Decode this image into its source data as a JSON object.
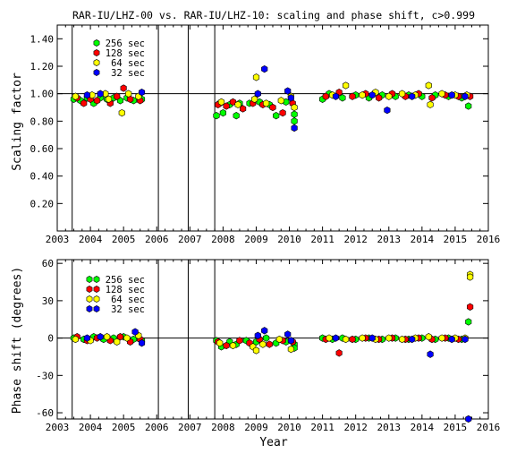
{
  "chart_data": [
    {
      "type": "scatter",
      "title": "RAR-IU/LHZ-00 vs. RAR-IU/LHZ-10: scaling and phase shift, c>0.999",
      "xlabel": "",
      "ylabel": "Scaling factor",
      "xlim": [
        2003,
        2016
      ],
      "ylim": [
        0.0,
        1.5
      ],
      "x_ticks": [
        2003,
        2004,
        2005,
        2006,
        2007,
        2008,
        2009,
        2010,
        2011,
        2012,
        2013,
        2014,
        2015,
        2016
      ],
      "y_ticks": [
        0.2,
        0.4,
        0.6,
        0.8,
        1.0,
        1.2,
        1.4
      ],
      "y_tick_labels": [
        "0.20",
        "0.40",
        "0.60",
        "0.80",
        "1.00",
        "1.20",
        "1.40"
      ],
      "reference_line": 1.0,
      "vertical_lines": [
        2003.45,
        2006.05,
        2006.95,
        2007.75
      ],
      "legend_placement": "top-left",
      "series": [
        {
          "name": "256 sec",
          "color": "#00ff00",
          "points": [
            [
              2003.5,
              0.96
            ],
            [
              2003.7,
              0.95
            ],
            [
              2003.9,
              0.97
            ],
            [
              2004.1,
              0.93
            ],
            [
              2004.3,
              0.97
            ],
            [
              2004.5,
              0.96
            ],
            [
              2004.7,
              0.97
            ],
            [
              2004.9,
              0.95
            ],
            [
              2005.1,
              0.97
            ],
            [
              2005.3,
              0.95
            ],
            [
              2005.55,
              0.96
            ],
            [
              2007.8,
              0.84
            ],
            [
              2007.9,
              0.93
            ],
            [
              2008.0,
              0.86
            ],
            [
              2008.2,
              0.92
            ],
            [
              2008.4,
              0.84
            ],
            [
              2008.5,
              0.93
            ],
            [
              2008.8,
              0.93
            ],
            [
              2009.1,
              0.94
            ],
            [
              2009.4,
              0.92
            ],
            [
              2009.6,
              0.84
            ],
            [
              2009.9,
              0.94
            ],
            [
              2010.15,
              0.85
            ],
            [
              2010.15,
              0.8
            ],
            [
              2011.0,
              0.96
            ],
            [
              2011.2,
              1.0
            ],
            [
              2011.6,
              0.97
            ],
            [
              2012.0,
              0.99
            ],
            [
              2012.4,
              0.97
            ],
            [
              2012.8,
              0.99
            ],
            [
              2013.2,
              0.98
            ],
            [
              2013.6,
              0.99
            ],
            [
              2014.0,
              0.98
            ],
            [
              2014.4,
              0.99
            ],
            [
              2014.8,
              0.98
            ],
            [
              2015.2,
              0.97
            ],
            [
              2015.4,
              0.91
            ]
          ]
        },
        {
          "name": "128 sec",
          "color": "#ff0000",
          "points": [
            [
              2003.6,
              0.97
            ],
            [
              2003.8,
              0.93
            ],
            [
              2004.0,
              0.96
            ],
            [
              2004.2,
              0.95
            ],
            [
              2004.6,
              0.93
            ],
            [
              2004.8,
              0.98
            ],
            [
              2005.0,
              1.04
            ],
            [
              2005.2,
              0.96
            ],
            [
              2005.5,
              0.95
            ],
            [
              2007.85,
              0.92
            ],
            [
              2008.1,
              0.91
            ],
            [
              2008.3,
              0.94
            ],
            [
              2008.6,
              0.89
            ],
            [
              2008.9,
              0.93
            ],
            [
              2009.2,
              0.92
            ],
            [
              2009.5,
              0.9
            ],
            [
              2009.8,
              0.86
            ],
            [
              2010.1,
              0.93
            ],
            [
              2011.1,
              0.98
            ],
            [
              2011.5,
              1.01
            ],
            [
              2011.9,
              0.98
            ],
            [
              2012.3,
              1.0
            ],
            [
              2012.7,
              0.97
            ],
            [
              2013.1,
              1.0
            ],
            [
              2013.5,
              0.98
            ],
            [
              2013.9,
              1.0
            ],
            [
              2014.3,
              0.97
            ],
            [
              2014.7,
              0.99
            ],
            [
              2015.1,
              0.98
            ],
            [
              2015.45,
              0.98
            ]
          ]
        },
        {
          "name": "64 sec",
          "color": "#ffff00",
          "points": [
            [
              2003.55,
              0.98
            ],
            [
              2004.05,
              0.99
            ],
            [
              2004.45,
              1.0
            ],
            [
              2004.55,
              0.96
            ],
            [
              2004.95,
              0.86
            ],
            [
              2005.15,
              1.0
            ],
            [
              2005.45,
              0.98
            ],
            [
              2007.95,
              0.94
            ],
            [
              2008.45,
              0.92
            ],
            [
              2008.95,
              0.96
            ],
            [
              2009.0,
              1.12
            ],
            [
              2009.3,
              0.93
            ],
            [
              2009.75,
              0.95
            ],
            [
              2010.05,
              0.98
            ],
            [
              2010.15,
              0.9
            ],
            [
              2011.3,
              0.99
            ],
            [
              2011.7,
              1.06
            ],
            [
              2012.2,
              0.99
            ],
            [
              2012.6,
              1.01
            ],
            [
              2013.0,
              0.98
            ],
            [
              2013.4,
              1.0
            ],
            [
              2013.8,
              0.99
            ],
            [
              2014.2,
              1.06
            ],
            [
              2014.25,
              0.92
            ],
            [
              2014.6,
              1.0
            ],
            [
              2015.0,
              0.99
            ],
            [
              2015.35,
              0.99
            ]
          ]
        },
        {
          "name": "32 sec",
          "color": "#0000ff",
          "points": [
            [
              2003.9,
              0.99
            ],
            [
              2004.3,
              1.0
            ],
            [
              2005.55,
              1.01
            ],
            [
              2009.05,
              1.0
            ],
            [
              2009.25,
              1.18
            ],
            [
              2009.95,
              1.02
            ],
            [
              2010.05,
              0.97
            ],
            [
              2010.15,
              0.75
            ],
            [
              2011.4,
              0.98
            ],
            [
              2012.5,
              0.99
            ],
            [
              2012.95,
              0.88
            ],
            [
              2013.7,
              0.98
            ],
            [
              2014.9,
              0.99
            ],
            [
              2015.3,
              0.98
            ]
          ]
        }
      ]
    },
    {
      "type": "scatter",
      "title": "",
      "xlabel": "Year",
      "ylabel": "Phase shift (degrees)",
      "xlim": [
        2003,
        2016
      ],
      "ylim": [
        -65,
        63
      ],
      "x_ticks": [
        2003,
        2004,
        2005,
        2006,
        2007,
        2008,
        2009,
        2010,
        2011,
        2012,
        2013,
        2014,
        2015,
        2016
      ],
      "y_ticks": [
        -60,
        -30,
        0,
        30,
        60
      ],
      "y_tick_labels": [
        "-60",
        "-30",
        "0",
        "30",
        "60"
      ],
      "reference_line": 0,
      "vertical_lines": [
        2003.45,
        2006.05,
        2006.95,
        2007.75
      ],
      "legend_placement": "top-left",
      "series": [
        {
          "name": "256 sec",
          "color": "#00ff00",
          "points": [
            [
              2003.5,
              0
            ],
            [
              2003.8,
              -1
            ],
            [
              2004.1,
              1
            ],
            [
              2004.4,
              -1
            ],
            [
              2004.7,
              0
            ],
            [
              2005.0,
              1
            ],
            [
              2005.3,
              -1
            ],
            [
              2005.55,
              -2
            ],
            [
              2007.8,
              -2
            ],
            [
              2007.95,
              -7
            ],
            [
              2008.2,
              -3
            ],
            [
              2008.4,
              -5
            ],
            [
              2008.7,
              -2
            ],
            [
              2009.0,
              -3
            ],
            [
              2009.3,
              0
            ],
            [
              2009.6,
              -4
            ],
            [
              2009.9,
              -3
            ],
            [
              2010.15,
              -5
            ],
            [
              2010.15,
              -8
            ],
            [
              2011.0,
              0
            ],
            [
              2011.3,
              -1
            ],
            [
              2011.6,
              0
            ],
            [
              2012.0,
              -1
            ],
            [
              2012.4,
              0
            ],
            [
              2012.8,
              -1
            ],
            [
              2013.2,
              0
            ],
            [
              2013.6,
              -1
            ],
            [
              2014.0,
              0
            ],
            [
              2014.4,
              -1
            ],
            [
              2014.8,
              0
            ],
            [
              2015.2,
              -1
            ],
            [
              2015.4,
              13
            ]
          ]
        },
        {
          "name": "128 sec",
          "color": "#ff0000",
          "points": [
            [
              2003.6,
              1
            ],
            [
              2003.9,
              -2
            ],
            [
              2004.2,
              0
            ],
            [
              2004.6,
              -2
            ],
            [
              2004.9,
              1
            ],
            [
              2005.2,
              -3
            ],
            [
              2005.5,
              -1
            ],
            [
              2007.85,
              -3
            ],
            [
              2008.1,
              -6
            ],
            [
              2008.5,
              -2
            ],
            [
              2008.8,
              -4
            ],
            [
              2009.1,
              -1
            ],
            [
              2009.4,
              -5
            ],
            [
              2009.8,
              -2
            ],
            [
              2010.1,
              -3
            ],
            [
              2011.1,
              -1
            ],
            [
              2011.5,
              -12
            ],
            [
              2011.9,
              -1
            ],
            [
              2012.3,
              0
            ],
            [
              2012.7,
              -1
            ],
            [
              2013.1,
              0
            ],
            [
              2013.5,
              -1
            ],
            [
              2013.9,
              0
            ],
            [
              2014.3,
              -1
            ],
            [
              2014.7,
              0
            ],
            [
              2015.1,
              -1
            ],
            [
              2015.45,
              25
            ]
          ]
        },
        {
          "name": "64 sec",
          "color": "#ffff00",
          "points": [
            [
              2003.55,
              -1
            ],
            [
              2004.0,
              -2
            ],
            [
              2004.5,
              1
            ],
            [
              2004.8,
              -3
            ],
            [
              2005.1,
              0
            ],
            [
              2005.45,
              2
            ],
            [
              2007.9,
              -4
            ],
            [
              2008.3,
              -6
            ],
            [
              2008.9,
              -7
            ],
            [
              2009.0,
              -10
            ],
            [
              2009.2,
              -5
            ],
            [
              2009.7,
              -1
            ],
            [
              2010.05,
              -9
            ],
            [
              2011.2,
              0
            ],
            [
              2011.7,
              -1
            ],
            [
              2012.2,
              0
            ],
            [
              2012.6,
              -1
            ],
            [
              2013.0,
              0
            ],
            [
              2013.4,
              -1
            ],
            [
              2013.8,
              0
            ],
            [
              2014.2,
              1
            ],
            [
              2014.6,
              0
            ],
            [
              2015.0,
              0
            ],
            [
              2015.3,
              0
            ],
            [
              2015.45,
              51
            ],
            [
              2015.45,
              49
            ]
          ]
        },
        {
          "name": "32 sec",
          "color": "#0000ff",
          "points": [
            [
              2003.9,
              0
            ],
            [
              2004.3,
              1
            ],
            [
              2005.35,
              5
            ],
            [
              2005.55,
              -4
            ],
            [
              2009.05,
              2
            ],
            [
              2009.25,
              6
            ],
            [
              2009.95,
              3
            ],
            [
              2010.05,
              -2
            ],
            [
              2011.4,
              0
            ],
            [
              2012.5,
              0
            ],
            [
              2013.7,
              -1
            ],
            [
              2014.25,
              -13
            ],
            [
              2014.9,
              -1
            ],
            [
              2015.3,
              -1
            ],
            [
              2015.4,
              -65
            ]
          ]
        }
      ]
    }
  ]
}
